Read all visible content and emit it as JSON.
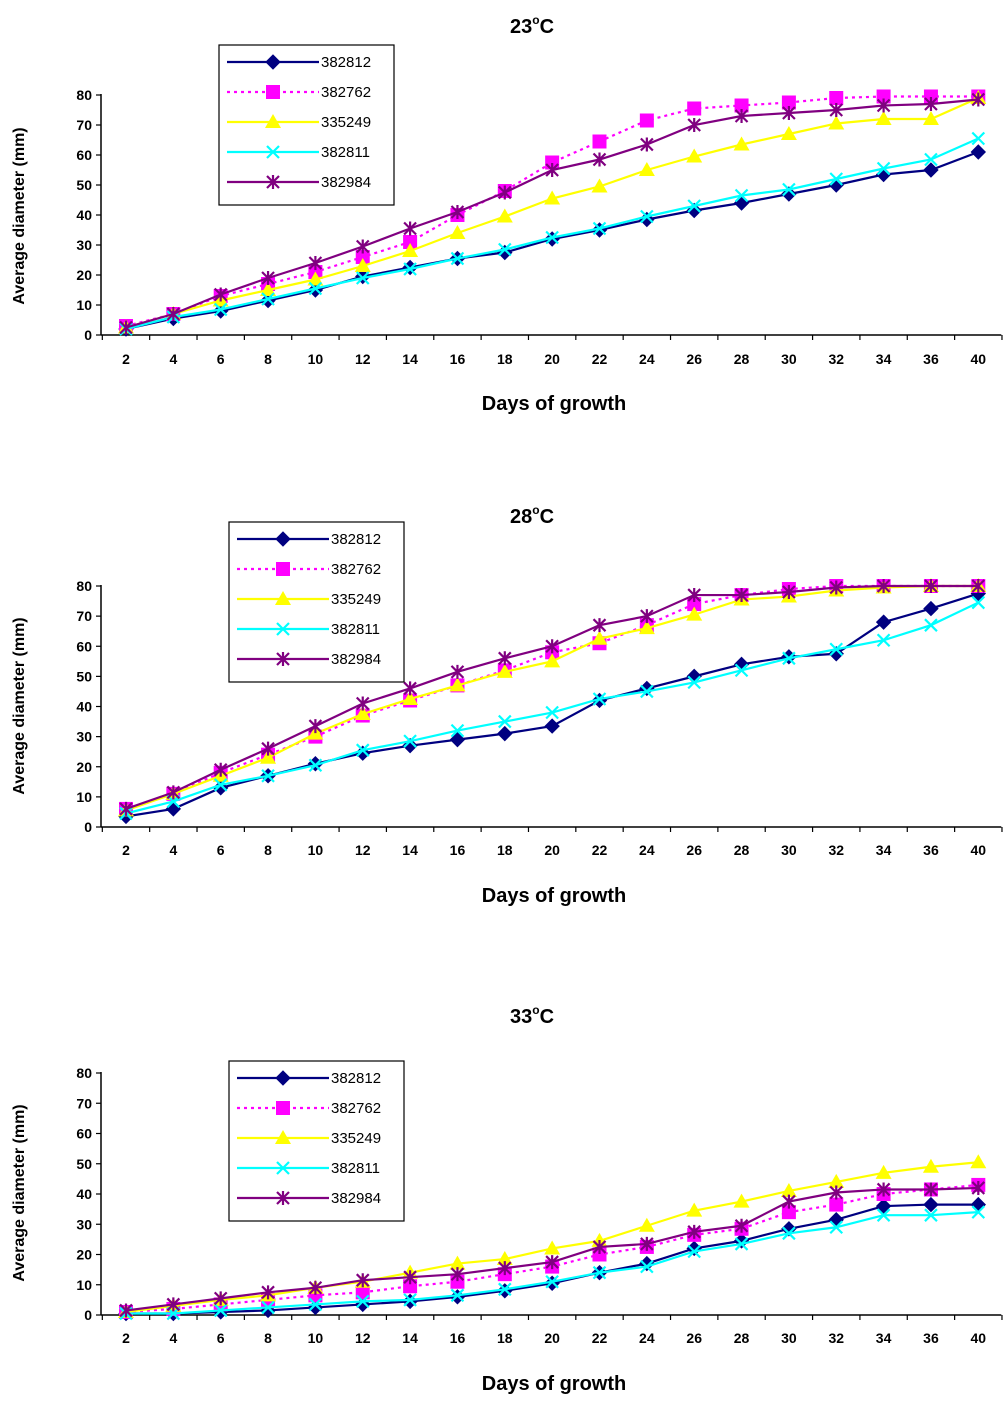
{
  "chart_data": [
    {
      "type": "line",
      "title": "23",
      "title_sup": "o",
      "title_suffix": "C",
      "xlabel": "Days of growth",
      "ylabel": "Average diameter (mm)",
      "ylim": [
        0,
        80
      ],
      "yticks": [
        "0",
        "10",
        "20",
        "30",
        "40",
        "50",
        "60",
        "70",
        "80"
      ],
      "categories": [
        "2",
        "4",
        "6",
        "8",
        "10",
        "12",
        "14",
        "16",
        "18",
        "20",
        "22",
        "24",
        "26",
        "28",
        "30",
        "32",
        "34",
        "36",
        "40"
      ],
      "grid": false,
      "legend": "top-left",
      "series": [
        {
          "name": "382812",
          "values": [
            2,
            5.5,
            8,
            11.5,
            15,
            19.5,
            22.5,
            25.5,
            27.5,
            32,
            35,
            38.5,
            41.5,
            44,
            47,
            50,
            53.5,
            55,
            61
          ]
        },
        {
          "name": "382762",
          "values": [
            3,
            7,
            13,
            17,
            21,
            26,
            31,
            40,
            48,
            57.5,
            64.5,
            71.5,
            75.5,
            76.5,
            77.5,
            79,
            79.5,
            79.5,
            79.5
          ]
        },
        {
          "name": "335249",
          "values": [
            2.5,
            7,
            11.5,
            15,
            18.5,
            23,
            28,
            34,
            39.5,
            45.5,
            49.5,
            55,
            59.5,
            63.5,
            67,
            70.5,
            72,
            72,
            79
          ]
        },
        {
          "name": "382811",
          "values": [
            2,
            6,
            8.5,
            12,
            15.5,
            19,
            22,
            25.5,
            28.5,
            32.5,
            35.5,
            39.5,
            43,
            46.5,
            48.5,
            52,
            55.5,
            58.5,
            65.5
          ]
        },
        {
          "name": "382984",
          "values": [
            2.5,
            7,
            13.5,
            19,
            24,
            29.5,
            35.5,
            41,
            47.5,
            55,
            58.5,
            63.5,
            70,
            73,
            74,
            75,
            76.5,
            77,
            78.5
          ]
        }
      ]
    },
    {
      "type": "line",
      "title": "28",
      "title_sup": "o",
      "title_suffix": "C",
      "xlabel": "Days of growth",
      "ylabel": "Average diameter (mm)",
      "ylim": [
        0,
        80
      ],
      "yticks": [
        "0",
        "10",
        "20",
        "30",
        "40",
        "50",
        "60",
        "70",
        "80"
      ],
      "categories": [
        "2",
        "4",
        "6",
        "8",
        "10",
        "12",
        "14",
        "16",
        "18",
        "20",
        "22",
        "24",
        "26",
        "28",
        "30",
        "32",
        "34",
        "36",
        "40"
      ],
      "grid": false,
      "legend": "top-left",
      "series": [
        {
          "name": "382812",
          "values": [
            3.5,
            6,
            13,
            17,
            21,
            24.5,
            27,
            29,
            31,
            33.5,
            42,
            46,
            50,
            54,
            56.5,
            57.5,
            68,
            72.5,
            77.5
          ]
        },
        {
          "name": "382762",
          "values": [
            6,
            11,
            18,
            24,
            30,
            37,
            42,
            47,
            52,
            58,
            61,
            67,
            74,
            77,
            79,
            80,
            80,
            80,
            80
          ]
        },
        {
          "name": "335249",
          "values": [
            5.5,
            11,
            17,
            23,
            31,
            37.5,
            42.5,
            47,
            51.5,
            55,
            62.5,
            66,
            70.5,
            75.5,
            76.5,
            78.5,
            79.5,
            80,
            80
          ]
        },
        {
          "name": "382811",
          "values": [
            4.5,
            8.5,
            14,
            17,
            20.5,
            25.5,
            28.5,
            32,
            35,
            38,
            42.5,
            45,
            48,
            52,
            56,
            59,
            62,
            67,
            74.5
          ]
        },
        {
          "name": "382984",
          "values": [
            6,
            11.5,
            19,
            26,
            33.5,
            41,
            46,
            51.5,
            56,
            60,
            67,
            70,
            77,
            77,
            78,
            79.5,
            80,
            80,
            80
          ]
        }
      ]
    },
    {
      "type": "line",
      "title": "33",
      "title_sup": "o",
      "title_suffix": "C",
      "xlabel": "Days of growth",
      "ylabel": "Average diameter (mm)",
      "ylim": [
        0,
        80
      ],
      "yticks": [
        "0",
        "10",
        "20",
        "30",
        "40",
        "50",
        "60",
        "70",
        "80"
      ],
      "categories": [
        "2",
        "4",
        "6",
        "8",
        "10",
        "12",
        "14",
        "16",
        "18",
        "20",
        "22",
        "24",
        "26",
        "28",
        "30",
        "32",
        "34",
        "36",
        "40"
      ],
      "grid": false,
      "legend": "top-left",
      "series": [
        {
          "name": "382812",
          "values": [
            0.5,
            0.5,
            1,
            1.5,
            2.5,
            3.5,
            4.5,
            6,
            8,
            10.5,
            14,
            17,
            22,
            24.5,
            28.5,
            31.5,
            36,
            36.5,
            36.5
          ]
        },
        {
          "name": "382762",
          "values": [
            1,
            2,
            3.5,
            5,
            6.5,
            7.5,
            9.5,
            11,
            13.5,
            16,
            20,
            22.5,
            26.5,
            28.5,
            34,
            36.5,
            40,
            41.5,
            43
          ]
        },
        {
          "name": "335249",
          "values": [
            1,
            3,
            5,
            6.5,
            9,
            11,
            14,
            17,
            18.5,
            22,
            24.5,
            29.5,
            34.5,
            37.5,
            41,
            44,
            47,
            49,
            50.5
          ]
        },
        {
          "name": "382811",
          "values": [
            0.5,
            0.5,
            1.5,
            2.5,
            3.5,
            4.5,
            5,
            6.5,
            8.5,
            11,
            14,
            16,
            21,
            23.5,
            27,
            29,
            33,
            33,
            34
          ]
        },
        {
          "name": "382984",
          "values": [
            1.5,
            3.5,
            5.5,
            7.5,
            9,
            11.5,
            12.5,
            13.5,
            15.5,
            17.5,
            22.5,
            23.5,
            27.5,
            29.5,
            37.5,
            40.5,
            41.5,
            41.5,
            42
          ]
        }
      ]
    }
  ],
  "styles": {
    "series_colors": [
      "#000080",
      "#ff00ff",
      "#ffff00",
      "#00ffff",
      "#800080"
    ],
    "series_markers": [
      "diamond",
      "square",
      "triangle",
      "x",
      "asterisk"
    ],
    "series_dash": [
      false,
      true,
      false,
      false,
      false
    ],
    "axis_color": "#000000",
    "background": "#ffffff"
  }
}
